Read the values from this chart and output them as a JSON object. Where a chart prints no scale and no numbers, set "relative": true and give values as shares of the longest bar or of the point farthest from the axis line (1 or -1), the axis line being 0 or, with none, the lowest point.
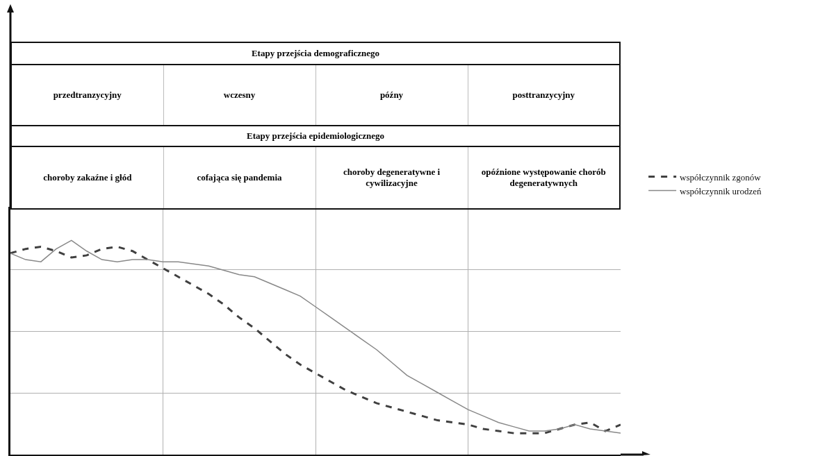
{
  "chart_data": {
    "type": "line",
    "relative": true,
    "grid": true,
    "legend": "right",
    "marker": "none",
    "categories": [
      null,
      null,
      null,
      null,
      null,
      null,
      null,
      null,
      null,
      null,
      null,
      null,
      null,
      null,
      null,
      null,
      null,
      null,
      null,
      null,
      null,
      null,
      null,
      null,
      null,
      null,
      null,
      null,
      null,
      null,
      null,
      null,
      null,
      null,
      null,
      null,
      null,
      null,
      null,
      null,
      null
    ],
    "series": [
      {
        "name": "współczynnik zgonów",
        "color": "#404040",
        "line_style": "dashed",
        "values": [
          0.94,
          0.96,
          0.97,
          0.95,
          0.92,
          0.93,
          0.96,
          0.97,
          0.95,
          0.91,
          0.87,
          0.83,
          0.79,
          0.75,
          0.7,
          0.64,
          0.59,
          0.53,
          0.47,
          0.42,
          0.38,
          0.34,
          0.3,
          0.27,
          0.24,
          0.22,
          0.2,
          0.18,
          0.16,
          0.15,
          0.14,
          0.12,
          0.11,
          0.1,
          0.1,
          0.1,
          0.12,
          0.14,
          0.15,
          0.11,
          0.14
        ]
      },
      {
        "name": "współczynnik urodzeń",
        "color": "#888888",
        "line_style": "solid",
        "values": [
          0.94,
          0.91,
          0.9,
          0.96,
          1.0,
          0.95,
          0.91,
          0.9,
          0.91,
          0.91,
          0.9,
          0.9,
          0.89,
          0.88,
          0.86,
          0.84,
          0.83,
          0.8,
          0.77,
          0.74,
          0.69,
          0.64,
          0.59,
          0.54,
          0.49,
          0.43,
          0.37,
          0.33,
          0.29,
          0.25,
          0.21,
          0.18,
          0.15,
          0.13,
          0.11,
          0.11,
          0.12,
          0.14,
          0.12,
          0.11,
          0.1
        ]
      }
    ],
    "annotations": [
      "Etapy przejścia demograficznego",
      "przedtranzycyjny",
      "wczesny",
      "późny",
      "posttranzycyjny",
      "Etapy przejścia epidemiologicznego",
      "choroby zakaźne i głód",
      "cofająca się pandemia",
      "choroby degeneratywne i cywilizacyjne",
      "opóźnione występowanie chorób degeneratywnych"
    ]
  }
}
